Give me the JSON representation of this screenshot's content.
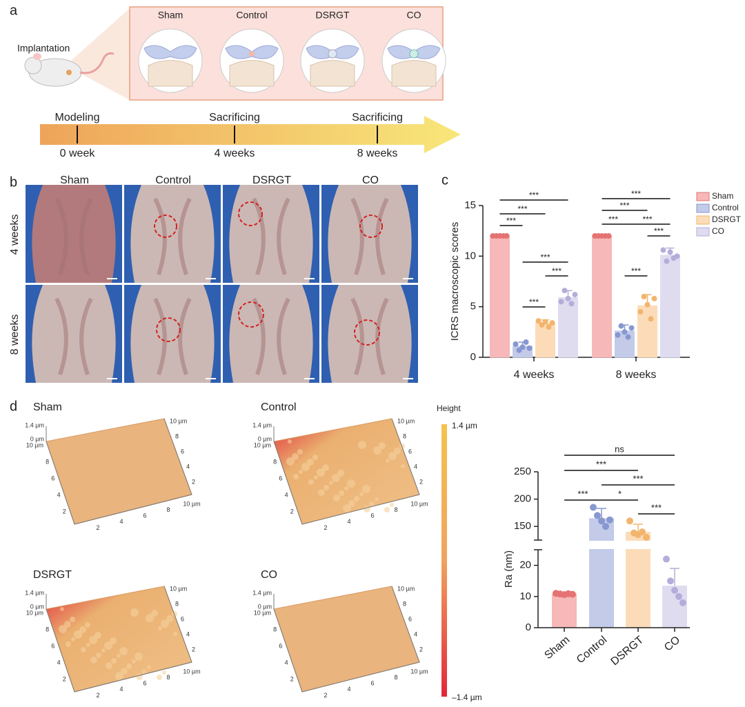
{
  "panel_labels": [
    "a",
    "b",
    "c",
    "d"
  ],
  "schematic": {
    "implantation": "Implantation",
    "groups": [
      "Sham",
      "Control",
      "DSRGT",
      "CO"
    ],
    "timeline": [
      {
        "event": "Modeling",
        "time": "0 week"
      },
      {
        "event": "Sacrificing",
        "time": "4 weeks"
      },
      {
        "event": "Sacrificing",
        "time": "8 weeks"
      }
    ]
  },
  "photos": {
    "columns": [
      "Sham",
      "Control",
      "DSRGT",
      "CO"
    ],
    "rows": [
      "4 weeks",
      "8 weeks"
    ]
  },
  "chart_data": [
    {
      "type": "bar",
      "ylabel": "ICRS macroscopic scores",
      "categories": [
        "4 weeks",
        "8 weeks"
      ],
      "ylim": [
        0,
        15
      ],
      "yticks": [
        0,
        5,
        10,
        15
      ],
      "legend": "upper right",
      "series": [
        {
          "name": "Sham",
          "color": "#f6b8b8",
          "marker_color": "#e57373",
          "values": [
            12,
            12
          ],
          "errors": [
            0,
            0
          ],
          "points": [
            [
              12,
              12,
              12,
              12,
              12
            ],
            [
              12,
              12,
              12,
              12,
              12
            ]
          ]
        },
        {
          "name": "Control",
          "color": "#c3cbe9",
          "marker_color": "#8797d0",
          "values": [
            1.1,
            2.6
          ],
          "errors": [
            0.4,
            0.6
          ],
          "points": [
            [
              1.3,
              0.7,
              1.0,
              1.5,
              0.9
            ],
            [
              2.2,
              3.1,
              2.5,
              2.0,
              2.9
            ]
          ]
        },
        {
          "name": "DSRGT",
          "color": "#fcdcb8",
          "marker_color": "#f2b56e",
          "values": [
            3.4,
            5.1
          ],
          "errors": [
            0.3,
            1.1
          ],
          "points": [
            [
              3.6,
              3.2,
              3.5,
              3.0,
              3.4
            ],
            [
              4.5,
              6.0,
              5.2,
              3.8,
              5.8
            ]
          ]
        },
        {
          "name": "CO",
          "color": "#e0dcf0",
          "marker_color": "#b5add9",
          "values": [
            5.9,
            10.1
          ],
          "errors": [
            0.7,
            0.7
          ],
          "points": [
            [
              5.5,
              6.6,
              5.8,
              5.3,
              6.2
            ],
            [
              10.6,
              9.5,
              10.4,
              9.8,
              10.0
            ]
          ]
        }
      ],
      "annotations": [
        {
          "text": "***",
          "category": "4 weeks",
          "between": [
            "Sham",
            "Control"
          ]
        },
        {
          "text": "***",
          "category": "4 weeks",
          "between": [
            "Sham",
            "DSRGT"
          ]
        },
        {
          "text": "***",
          "category": "4 weeks",
          "between": [
            "Sham",
            "CO"
          ]
        },
        {
          "text": "***",
          "category": "4 weeks",
          "between": [
            "Control",
            "DSRGT"
          ]
        },
        {
          "text": "***",
          "category": "4 weeks",
          "between": [
            "Control",
            "CO"
          ]
        },
        {
          "text": "***",
          "category": "4 weeks",
          "between": [
            "DSRGT",
            "CO"
          ]
        },
        {
          "text": "***",
          "category": "8 weeks",
          "between": [
            "Sham",
            "Control"
          ]
        },
        {
          "text": "***",
          "category": "8 weeks",
          "between": [
            "Control",
            "CO"
          ]
        },
        {
          "text": "***",
          "category": "8 weeks",
          "between": [
            "Sham",
            "DSRGT"
          ]
        },
        {
          "text": "***",
          "category": "8 weeks",
          "between": [
            "Sham",
            "CO"
          ]
        },
        {
          "text": "***",
          "category": "8 weeks",
          "between": [
            "DSRGT",
            "CO"
          ]
        },
        {
          "text": "***",
          "category": "8 weeks",
          "between": [
            "Control",
            "DSRGT"
          ]
        }
      ]
    },
    {
      "type": "bar",
      "ylabel": "Ra (nm)",
      "categories": [
        "Sham",
        "Control",
        "DSRGT",
        "CO"
      ],
      "values": [
        10.8,
        165,
        140,
        13.5
      ],
      "errors": [
        0.3,
        18,
        14,
        5.5
      ],
      "points": [
        [
          11,
          10.8,
          10.6,
          10.9,
          10.7
        ],
        [
          185,
          170,
          160,
          150,
          162
        ],
        [
          160,
          138,
          135,
          140,
          130
        ],
        [
          22,
          15,
          12,
          10,
          8
        ]
      ],
      "colors": [
        "#f6b8b8",
        "#c3cbe9",
        "#fcdcb8",
        "#e0dcf0"
      ],
      "marker_colors": [
        "#e57373",
        "#8797d0",
        "#f2b56e",
        "#b5add9"
      ],
      "ylim": [
        0,
        250
      ],
      "ybreak": [
        25,
        125
      ],
      "yticks": [
        0,
        10,
        20,
        150,
        200,
        250
      ],
      "annotations": [
        {
          "text": "***",
          "between": [
            "Sham",
            "Control"
          ]
        },
        {
          "text": "*",
          "between": [
            "Control",
            "DSRGT"
          ]
        },
        {
          "text": "***",
          "between": [
            "DSRGT",
            "CO"
          ]
        },
        {
          "text": "***",
          "between": [
            "Sham",
            "DSRGT"
          ]
        },
        {
          "text": "***",
          "between": [
            "Control",
            "CO"
          ]
        },
        {
          "text": "ns",
          "between": [
            "Sham",
            "CO"
          ]
        }
      ]
    }
  ],
  "afm": {
    "panels": [
      "Sham",
      "Control",
      "DSRGT",
      "CO"
    ],
    "z_labels": [
      "1.4 µm",
      "0 µm"
    ],
    "axis_ticks": [
      "2",
      "4",
      "6",
      "8",
      "10 µm"
    ],
    "colorbar": {
      "title": "Height",
      "max": "1.4 µm",
      "min": "–1.4 µm"
    }
  }
}
